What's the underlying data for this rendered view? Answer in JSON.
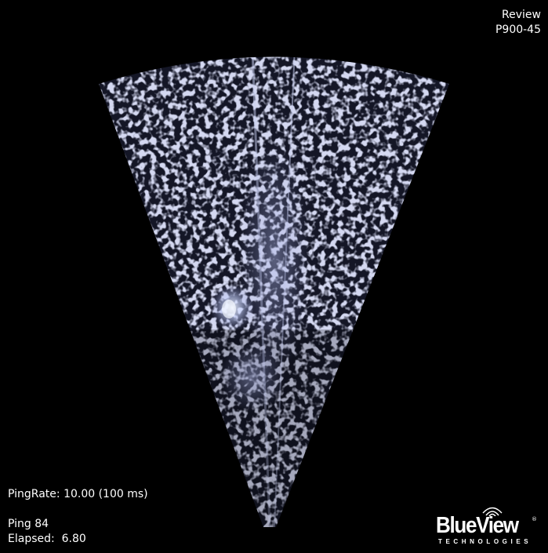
{
  "mode": {
    "label": "Review",
    "device": "P900-45"
  },
  "status": {
    "ping_rate_label": "PingRate:",
    "ping_rate_value": "10.00 (100 ms)",
    "ping_label": "Ping",
    "ping_value": "84",
    "elapsed_label": "Elapsed:",
    "elapsed_value": "6.80"
  },
  "brand": {
    "name": "BlueView",
    "sub": "TECHNOLOGIES",
    "reg": "®"
  },
  "colors": {
    "background": "#000000",
    "echo": "#a8b0e0",
    "echo_bright": "#e8f0ff",
    "text": "#ffffff"
  },
  "icons": {
    "logo_waves": "sonar-waves-icon"
  }
}
